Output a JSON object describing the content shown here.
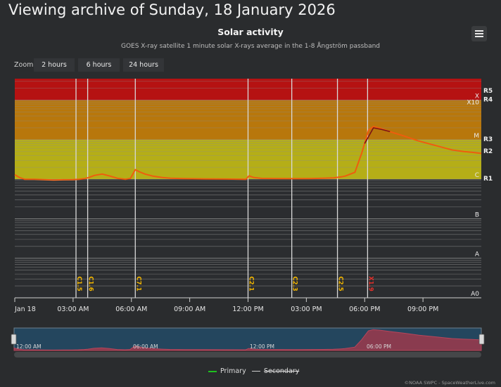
{
  "page": {
    "heading": "Viewing archive of Sunday, 18 January 2026",
    "menu_icon": "hamburger-menu-icon",
    "credits": "©NOAA SWPC - SpaceWeatherLive.com"
  },
  "zoom": {
    "label": "Zoom",
    "buttons": [
      "2 hours",
      "6 hours",
      "24 hours"
    ]
  },
  "legend": {
    "primary": "Primary",
    "secondary": "Secondary",
    "primary_color": "#1ec21e",
    "secondary_color": "#cfcfcf"
  },
  "navigator": {
    "labels": [
      "12:00 AM",
      "06:00 AM",
      "12:00 PM",
      "06:00 PM"
    ]
  },
  "chart_data": {
    "type": "line",
    "title": "Solar activity",
    "subtitle": "GOES X-ray satellite 1 minute solar X-rays average in the 1-8 Ångström passband",
    "y_scale": "log",
    "x_unit": "hours since 00:00 UTC, 18 January 2026",
    "x_range": [
      0,
      24
    ],
    "y_range": [
      1e-08,
      0.001
    ],
    "x_tick_labels": [
      "Jan 18",
      "03:00 AM",
      "06:00 AM",
      "09:00 AM",
      "12:00 PM",
      "03:00 PM",
      "06:00 PM",
      "09:00 PM"
    ],
    "x_tick_hours": [
      0,
      3,
      6,
      9,
      12,
      15,
      18,
      21
    ],
    "flare_class_labels": [
      {
        "label": "A0",
        "flux": 1e-08
      },
      {
        "label": "A",
        "flux": 1e-07
      },
      {
        "label": "B",
        "flux": 1e-06
      },
      {
        "label": "C",
        "flux": 1e-05
      },
      {
        "label": "M",
        "flux": 0.0001
      },
      {
        "label": "X",
        "flux": 0.001
      }
    ],
    "radio_blackout_labels": [
      {
        "label": "R1",
        "flux": 1e-05
      },
      {
        "label": "R2",
        "flux": 5e-05
      },
      {
        "label": "R3",
        "flux": 0.0001
      },
      {
        "label": "R4",
        "flux": 0.001
      },
      {
        "label": "R5",
        "flux": 0.002
      }
    ],
    "extra_labels": [
      {
        "label": "X10",
        "flux": 0.001
      }
    ],
    "band_colors": {
      "M": "#b5ae17",
      "X": "#b8770c",
      "X10": "#b51212",
      "R5": "#c0242a",
      "background": "#2b2d30",
      "gridline": "#8a8a8a"
    },
    "series": [
      {
        "name": "Primary",
        "color": "#ee5d0e",
        "points": [
          [
            0,
            1.3e-05
          ],
          [
            0.25,
            1.1e-05
          ],
          [
            0.5,
            1e-05
          ],
          [
            1.0,
            1e-05
          ],
          [
            1.5,
            9.8e-06
          ],
          [
            2.0,
            9.6e-06
          ],
          [
            2.5,
            9.7e-06
          ],
          [
            3.0,
            9.8e-06
          ],
          [
            3.3,
            1e-05
          ],
          [
            3.6,
            1.04e-05
          ],
          [
            3.8,
            1.1e-05
          ],
          [
            4.1,
            1.25e-05
          ],
          [
            4.5,
            1.35e-05
          ],
          [
            4.9,
            1.2e-05
          ],
          [
            5.3,
            1.05e-05
          ],
          [
            5.7,
            1e-05
          ],
          [
            5.95,
            1.05e-05
          ],
          [
            6.2,
            1.75e-05
          ],
          [
            6.4,
            1.55e-05
          ],
          [
            6.7,
            1.35e-05
          ],
          [
            7.1,
            1.2e-05
          ],
          [
            7.6,
            1.1e-05
          ],
          [
            8.0,
            1.06e-05
          ],
          [
            8.8,
            1.03e-05
          ],
          [
            9.8,
            1.02e-05
          ],
          [
            10.8,
            1.01e-05
          ],
          [
            11.9,
            1e-05
          ],
          [
            12.05,
            1.22e-05
          ],
          [
            12.3,
            1.1e-05
          ],
          [
            12.7,
            1.05e-05
          ],
          [
            13.5,
            1.04e-05
          ],
          [
            14.4,
            1.03e-05
          ],
          [
            15.2,
            1.04e-05
          ],
          [
            15.9,
            1.06e-05
          ],
          [
            16.4,
            1.08e-05
          ],
          [
            16.8,
            1.15e-05
          ],
          [
            17.0,
            1.2e-05
          ],
          [
            17.5,
            1.5e-05
          ],
          [
            17.85,
            4.6e-05
          ],
          [
            18.2,
            0.000175
          ],
          [
            18.45,
            0.000215
          ],
          [
            18.8,
            0.000195
          ],
          [
            19.3,
            0.00016
          ],
          [
            20.0,
            0.000125
          ],
          [
            20.8,
            9.2e-05
          ],
          [
            21.8,
            6.8e-05
          ],
          [
            22.5,
            5.5e-05
          ],
          [
            23.1,
            5e-05
          ],
          [
            23.5,
            4.8e-05
          ],
          [
            24.0,
            4.5e-05
          ]
        ]
      },
      {
        "name": "Secondary",
        "color": "#7a1414",
        "points": [
          [
            18.0,
            8e-05
          ],
          [
            18.45,
            0.0002
          ],
          [
            18.9,
            0.00018
          ],
          [
            19.3,
            0.00016
          ]
        ]
      }
    ],
    "events": [
      {
        "label": "C1.5",
        "time": 3.15
      },
      {
        "label": "C1.6",
        "time": 3.75
      },
      {
        "label": "C7.1",
        "time": 6.2
      },
      {
        "label": "C2.1",
        "time": 12.0
      },
      {
        "label": "C2.3",
        "time": 14.25
      },
      {
        "label": "C2.5",
        "time": 16.6
      },
      {
        "label": "X1.9",
        "time": 18.15
      }
    ]
  }
}
